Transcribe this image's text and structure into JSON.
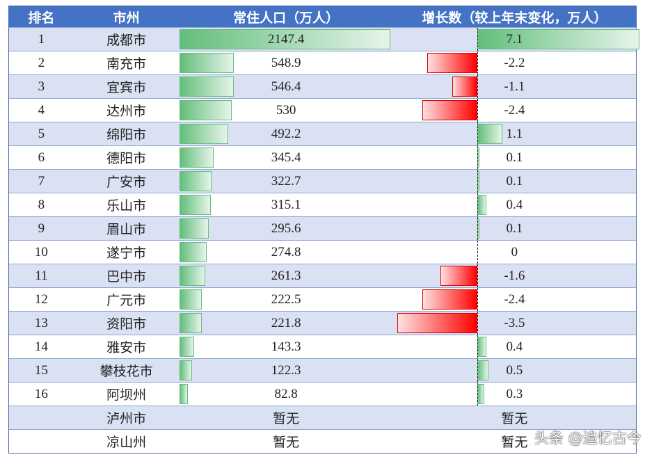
{
  "header": {
    "rank": "排名",
    "city": "市州",
    "population": "常住人口（万人）",
    "growth": "增长数（较上年末变化，万人）"
  },
  "colors": {
    "header_bg": "#4472C4",
    "alt_row": "#D9E1F2",
    "positive_bar": "#63BE7B",
    "negative_bar": "#FF0000"
  },
  "rows": [
    {
      "rank": "1",
      "city": "成都市",
      "population": "2147.4",
      "growth": "7.1"
    },
    {
      "rank": "2",
      "city": "南充市",
      "population": "548.9",
      "growth": "-2.2"
    },
    {
      "rank": "3",
      "city": "宜宾市",
      "population": "546.4",
      "growth": "-1.1"
    },
    {
      "rank": "4",
      "city": "达州市",
      "population": "530",
      "growth": "-2.4"
    },
    {
      "rank": "5",
      "city": "绵阳市",
      "population": "492.2",
      "growth": "1.1"
    },
    {
      "rank": "6",
      "city": "德阳市",
      "population": "345.4",
      "growth": "0.1"
    },
    {
      "rank": "7",
      "city": "广安市",
      "population": "322.7",
      "growth": "0.1"
    },
    {
      "rank": "8",
      "city": "乐山市",
      "population": "315.1",
      "growth": "0.4"
    },
    {
      "rank": "9",
      "city": "眉山市",
      "population": "295.6",
      "growth": "0.1"
    },
    {
      "rank": "10",
      "city": "遂宁市",
      "population": "274.8",
      "growth": "0"
    },
    {
      "rank": "11",
      "city": "巴中市",
      "population": "261.3",
      "growth": "-1.6"
    },
    {
      "rank": "12",
      "city": "广元市",
      "population": "222.5",
      "growth": "-2.4"
    },
    {
      "rank": "13",
      "city": "资阳市",
      "population": "221.8",
      "growth": "-3.5"
    },
    {
      "rank": "14",
      "city": "雅安市",
      "population": "143.3",
      "growth": "0.4"
    },
    {
      "rank": "15",
      "city": "攀枝花市",
      "population": "122.3",
      "growth": "0.5"
    },
    {
      "rank": "16",
      "city": "阿坝州",
      "population": "82.8",
      "growth": "0.3"
    }
  ],
  "missing_rows": [
    {
      "city": "泸州市",
      "population": "暂无",
      "growth": "暂无"
    },
    {
      "city": "凉山州",
      "population": "暂无",
      "growth": "暂无"
    }
  ],
  "watermark": "头条 @追忆古今"
}
